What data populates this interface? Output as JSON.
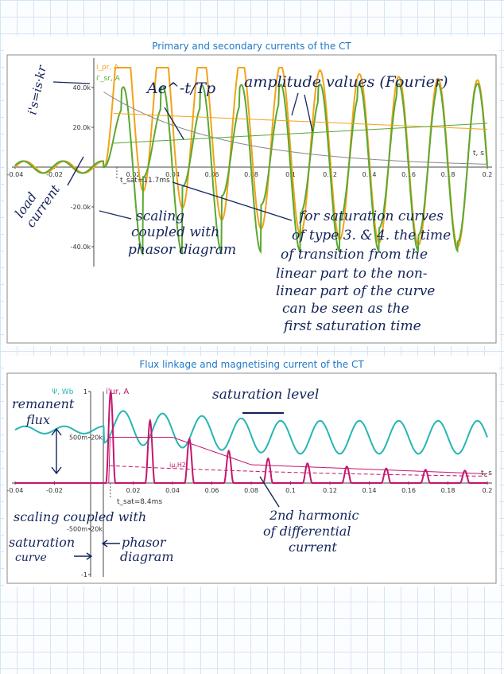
{
  "chart_data": [
    {
      "type": "line",
      "title": "Primary and secondary currents of the CT",
      "x_axis": {
        "label": "t, s",
        "range": [
          -0.04,
          0.2
        ],
        "ticks": [
          "-0.04",
          "-0.02",
          "0.02",
          "0.04",
          "0.06",
          "0.08",
          "0.1",
          "0.12",
          "0.14",
          "0.16",
          "0.18",
          "0.2"
        ]
      },
      "y_axis": {
        "range": [
          -50000,
          50000
        ],
        "ticks": [
          "40.0k",
          "20.0k",
          "-20.0k",
          "-40.0k"
        ]
      },
      "series": [
        {
          "name": "i_pr, A",
          "color": "#f2a31a"
        },
        {
          "name": "i'_sr, A",
          "color": "#5aa832"
        }
      ],
      "t_sat_label": "t_sat=11.7ms",
      "annotations": {
        "scale": "i's=is·kr",
        "exp": "Ae^-t/Tp",
        "fourier": "amplitude values (Fourier)",
        "load1": "load",
        "load2": "current",
        "scaling1": "scaling",
        "scaling2": "coupled with",
        "scaling3": "phasor diagram",
        "sat1": "for saturation curves",
        "sat2": "of type 3. & 4. the time",
        "sat3": "of transition from the",
        "sat4": "linear part to the non-",
        "sat5": "linear part of the curve",
        "sat6": "can be seen as the",
        "sat7": "first saturation time"
      }
    },
    {
      "type": "line",
      "title": "Flux linkage and magnetising current of the CT",
      "x_axis": {
        "label": "t, s",
        "range": [
          -0.04,
          0.2
        ],
        "ticks": [
          "-0.04",
          "-0.02",
          "0.02",
          "0.04",
          "0.06",
          "0.08",
          "0.1",
          "0.12",
          "0.14",
          "0.16",
          "0.18",
          "0.2"
        ]
      },
      "y_axis_left": {
        "label": "Ψ, Wb",
        "range": [
          -1,
          1
        ],
        "ticks": [
          "1",
          "500m",
          "-500m",
          "-1"
        ]
      },
      "y_axis_right": {
        "label": "i'μr, A",
        "ticks": [
          "20k",
          "-20k"
        ]
      },
      "series": [
        {
          "name": "Ψ, Wb",
          "color": "#27b5b5"
        },
        {
          "name": "i'μr, A",
          "color": "#c4166e"
        },
        {
          "name": "iμ,H2",
          "color": "#c4166e"
        }
      ],
      "t_sat_label": "t_sat=8.4ms",
      "annotations": {
        "rem1": "remanent",
        "rem2": "flux",
        "satlevel": "saturation level",
        "coupled1": "scaling coupled with",
        "coupled2": "saturation",
        "coupled3": "curve",
        "phasor1": "phasor",
        "phasor2": "diagram",
        "h2a": "2nd harmonic",
        "h2b": "of differential",
        "h2c": "current"
      }
    }
  ]
}
